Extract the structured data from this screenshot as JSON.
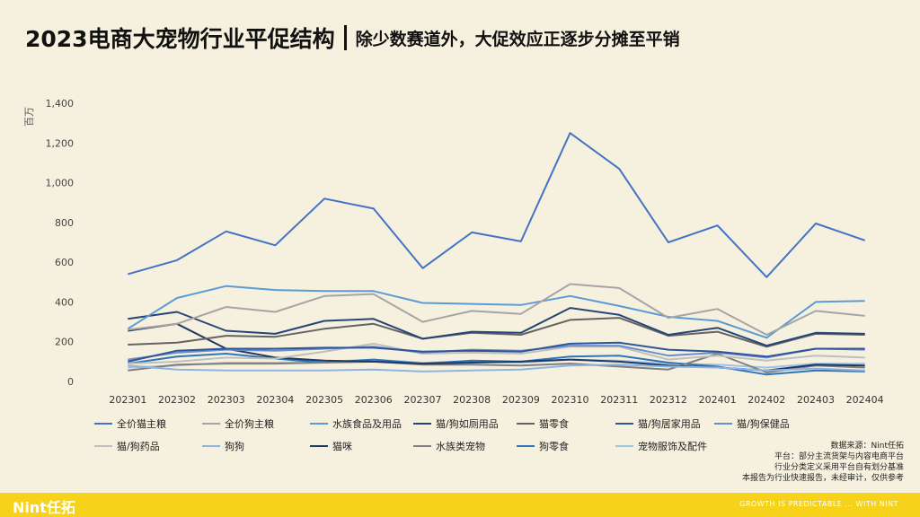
{
  "header": {
    "title": "2023电商大宠物行业平促结构",
    "subtitle": "除少数赛道外，大促效应正逐步分摊至平销"
  },
  "notes": [
    "数据来源：Nint任拓",
    "平台：部分主流货架与内容电商平台",
    "行业分类定义采用平台自有划分基准",
    "本报告为行业快速报告，未经审计，仅供参考"
  ],
  "footer": {
    "brand": "Nint任拓",
    "tagline": "GROWTH IS PREDICTABLE ... WITH NINT"
  },
  "chart_data": {
    "type": "line",
    "ylabel": "百万",
    "ylim": [
      0,
      1400
    ],
    "yticks": [
      0,
      200,
      400,
      600,
      800,
      1000,
      1200,
      1400
    ],
    "yticklabels": [
      "0",
      "200",
      "400",
      "600",
      "800",
      "1,000",
      "1,200",
      "1,400"
    ],
    "grid": false,
    "legend": "bottom",
    "categories": [
      "202301",
      "202302",
      "202303",
      "202304",
      "202305",
      "202306",
      "202307",
      "202308",
      "202309",
      "202310",
      "202311",
      "202312",
      "202401",
      "202402",
      "202403",
      "202404"
    ],
    "series": [
      {
        "name": "全价猫主粮",
        "color": "#4472c4",
        "values": [
          540,
          610,
          755,
          685,
          920,
          870,
          570,
          750,
          705,
          1250,
          1070,
          700,
          785,
          525,
          795,
          710
        ]
      },
      {
        "name": "全价狗主粮",
        "color": "#a5a5a5",
        "values": [
          260,
          290,
          375,
          350,
          430,
          440,
          300,
          355,
          340,
          490,
          470,
          320,
          365,
          235,
          355,
          330
        ]
      },
      {
        "name": "水族食品及用品",
        "color": "#5b9bd5",
        "values": [
          265,
          420,
          480,
          460,
          455,
          455,
          395,
          390,
          385,
          430,
          380,
          325,
          305,
          220,
          400,
          405
        ]
      },
      {
        "name": "猫/狗如厕用品",
        "color": "#264478",
        "values": [
          315,
          350,
          255,
          240,
          305,
          315,
          215,
          250,
          245,
          370,
          335,
          235,
          270,
          180,
          245,
          240
        ]
      },
      {
        "name": "猫零食",
        "color": "#636363",
        "values": [
          185,
          195,
          230,
          225,
          265,
          290,
          215,
          245,
          235,
          310,
          320,
          230,
          250,
          175,
          240,
          235
        ]
      },
      {
        "name": "猫/狗居家用品",
        "color": "#2e5597",
        "values": [
          100,
          155,
          165,
          165,
          170,
          170,
          150,
          155,
          150,
          190,
          195,
          160,
          150,
          125,
          165,
          165
        ]
      },
      {
        "name": "猫/狗保健品",
        "color": "#698ed0",
        "values": [
          110,
          145,
          160,
          155,
          165,
          175,
          145,
          160,
          155,
          180,
          180,
          130,
          145,
          120,
          165,
          160
        ]
      },
      {
        "name": "猫/狗药品",
        "color": "#bfbfbf",
        "values": [
          90,
          100,
          120,
          115,
          150,
          190,
          140,
          145,
          140,
          175,
          175,
          110,
          130,
          105,
          130,
          120
        ]
      },
      {
        "name": "狗狗",
        "color": "#8db3e2",
        "values": [
          80,
          60,
          55,
          55,
          55,
          60,
          50,
          55,
          60,
          80,
          85,
          75,
          70,
          55,
          65,
          55
        ]
      },
      {
        "name": "猫咪",
        "color": "#1f3864",
        "values": [
          255,
          290,
          165,
          120,
          105,
          100,
          90,
          95,
          100,
          110,
          100,
          80,
          70,
          55,
          85,
          80
        ]
      },
      {
        "name": "水族类宠物",
        "color": "#7f7f7f",
        "values": [
          55,
          85,
          90,
          90,
          95,
          100,
          85,
          85,
          80,
          90,
          75,
          60,
          140,
          45,
          80,
          70
        ]
      },
      {
        "name": "狗零食",
        "color": "#2f75b5",
        "values": [
          90,
          125,
          140,
          115,
          95,
          110,
          90,
          105,
          100,
          125,
          130,
          95,
          75,
          35,
          55,
          50
        ]
      },
      {
        "name": "宠物服饰及配件",
        "color": "#9dc3e6",
        "values": [
          70,
          80,
          95,
          95,
          100,
          110,
          95,
          100,
          95,
          110,
          105,
          90,
          85,
          70,
          90,
          90
        ]
      }
    ]
  }
}
